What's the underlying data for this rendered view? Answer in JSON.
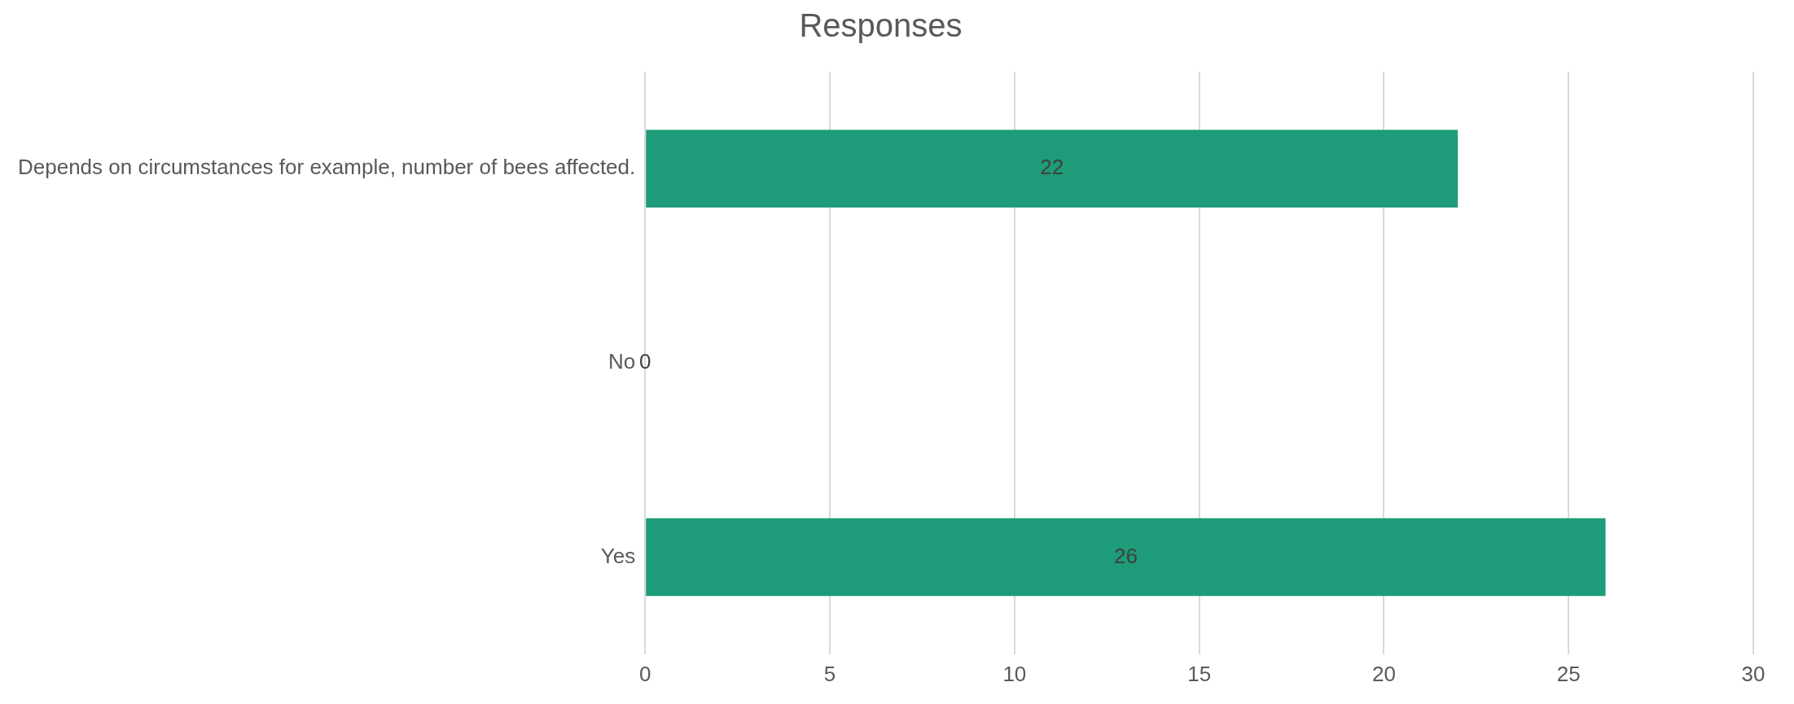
{
  "chart_data": {
    "type": "bar",
    "orientation": "horizontal",
    "title": "Responses",
    "categories": [
      "Depends on circumstances for example, number of bees affected.",
      "No",
      "Yes"
    ],
    "values": [
      22,
      0,
      26
    ],
    "color": "#1e9b78",
    "xlim": [
      0,
      30
    ],
    "xticks": [
      0,
      5,
      10,
      15,
      20,
      25,
      30
    ],
    "grid": "x",
    "legend": false,
    "data_labels": true
  }
}
